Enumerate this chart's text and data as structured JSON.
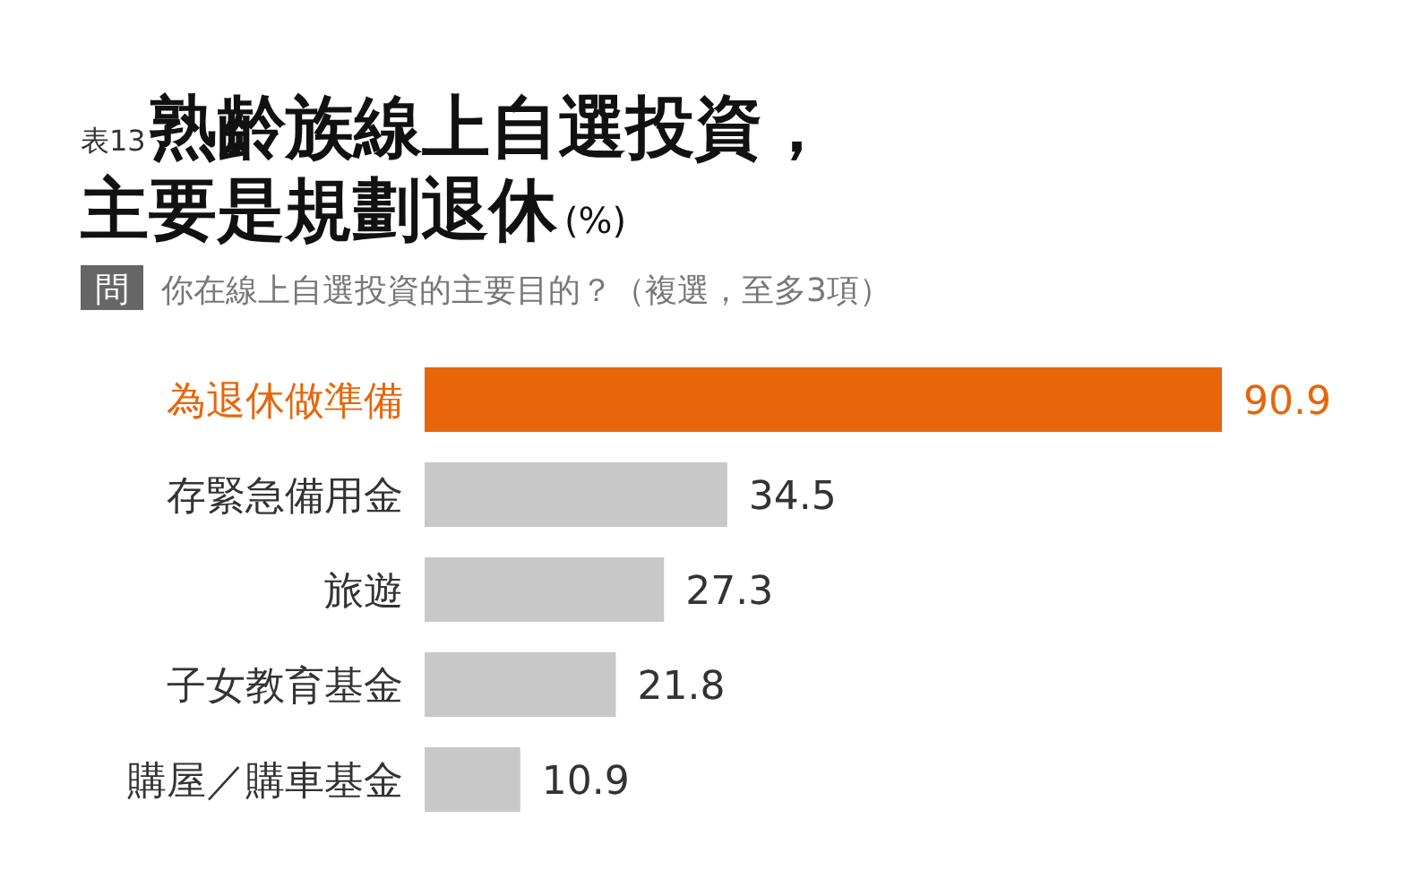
{
  "chart_data": {
    "type": "bar",
    "orientation": "horizontal",
    "title": "熟齡族線上自選投資，主要是規劃退休",
    "subtitle": "你在線上自選投資的主要目的？（複選，至多3項）",
    "annotations": [
      "表13",
      "(%)",
      "問"
    ],
    "categories": [
      "為退休做準備",
      "存緊急備用金",
      "旅遊",
      "子女教育基金",
      "購屋／購車基金"
    ],
    "values": [
      90.9,
      34.5,
      27.3,
      21.8,
      10.9
    ],
    "colors": [
      "#e8650a",
      "#c8c8c8",
      "#c8c8c8",
      "#c8c8c8",
      "#c8c8c8"
    ],
    "data_labels": true
  }
}
